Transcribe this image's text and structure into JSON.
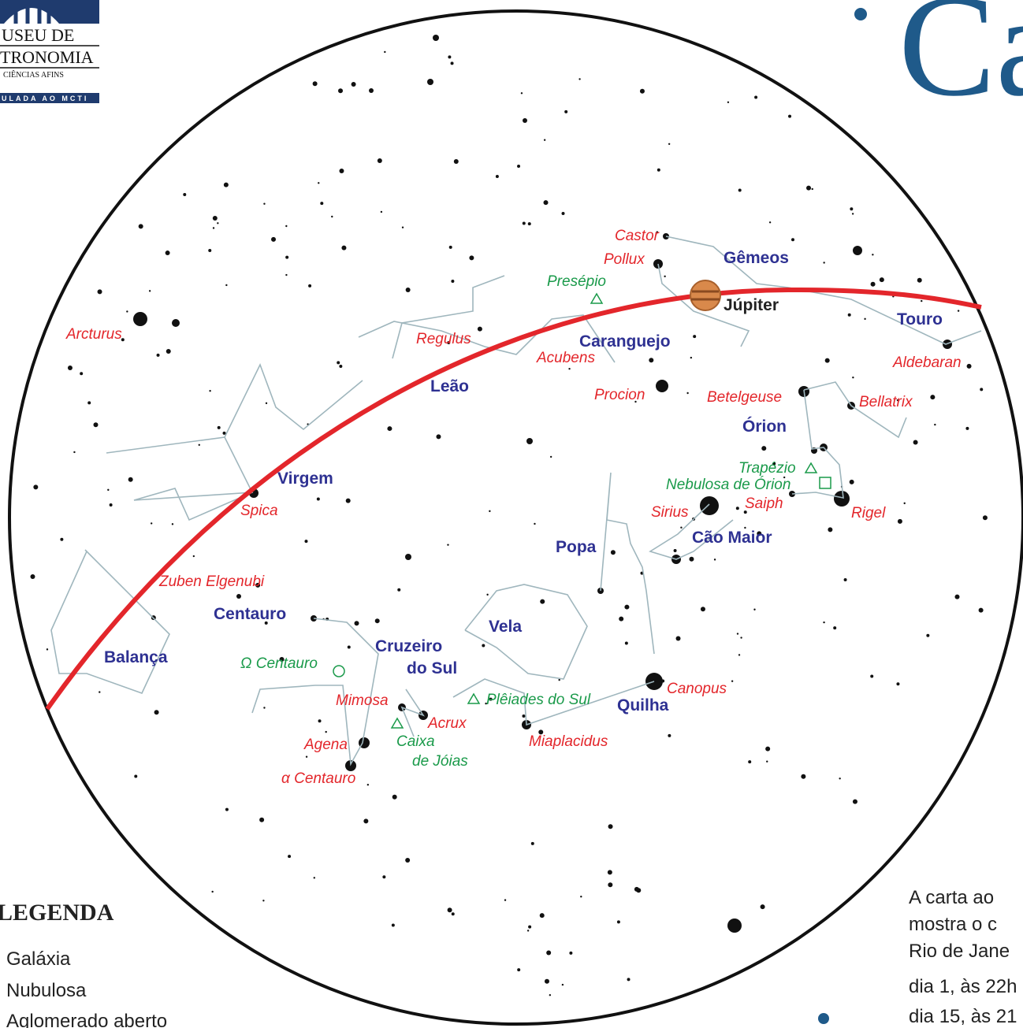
{
  "logo": {
    "lines": [
      "USEU DE",
      "TRONOMIA",
      "CIÊNCIAS AFINS",
      "ULADA AO MCTI"
    ]
  },
  "title": "Ca",
  "constellations": [
    "Gêmeos",
    "Touro",
    "Caranguejo",
    "Leão",
    "Órion",
    "Virgem",
    "Popa",
    "Cão Maior",
    "Centauro",
    "Vela",
    "Cruzeiro",
    "do Sul",
    "Balança",
    "Quilha"
  ],
  "stars": [
    "Castor",
    "Pollux",
    "Regulus",
    "Acubens",
    "Procion",
    "Betelgeuse",
    "Bellatrix",
    "Aldebaran",
    "Arcturus",
    "Spica",
    "Sirius",
    "Saiph",
    "Rigel",
    "Zuben Elgenubi",
    "Mimosa",
    "Acrux",
    "Agena",
    "α Centauro",
    "Canopus",
    "Miaplacidus"
  ],
  "deep_sky": [
    "Presépio",
    "Trapézio",
    "Nebulosa de Órion",
    "Ω Centauro",
    "Plêiades do Sul",
    "Caixa",
    "de Jóias"
  ],
  "planet": "Júpiter",
  "legend": {
    "title": "LEGENDA",
    "items": [
      "Galáxia",
      "Nubulosa",
      "Aglomerado aberto"
    ]
  },
  "caption": [
    "A carta ao",
    "mostra o c",
    "Rio de Jane",
    "dia 1, às 22h",
    "dia 15, às 21"
  ]
}
